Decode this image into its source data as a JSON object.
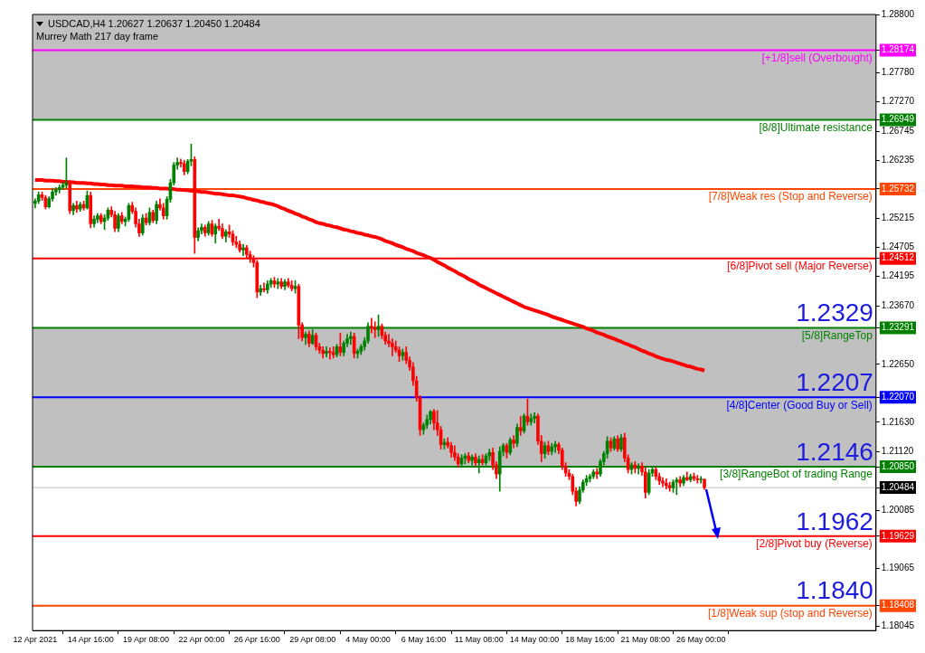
{
  "chart_data": {
    "type": "candlestick",
    "title": "USDCAD,H4 1.20627 1.20637 1.20450 1.20484",
    "subtitle": "Murrey Math 217 day frame",
    "categories": [
      "12 Apr 2021",
      null,
      null,
      null,
      null,
      null,
      null,
      null,
      null,
      null,
      null,
      null,
      null,
      null,
      null,
      null,
      "14 Apr 16:00",
      null,
      null,
      null,
      null,
      null,
      null,
      null,
      null,
      null,
      null,
      null,
      null,
      null,
      null,
      null,
      "19 Apr 08:00",
      null,
      null,
      null,
      null,
      null,
      null,
      null,
      null,
      null,
      null,
      null,
      null,
      null,
      null,
      null,
      "22 Apr 00:00",
      null,
      null,
      null,
      null,
      null,
      null,
      null,
      null,
      null,
      null,
      null,
      null,
      null,
      null,
      null,
      "26 Apr 16:00",
      null,
      null,
      null,
      null,
      null,
      null,
      null,
      null,
      null,
      null,
      null,
      null,
      null,
      null,
      null,
      "29 Apr 08:00",
      null,
      null,
      null,
      null,
      null,
      null,
      null,
      null,
      null,
      null,
      null,
      null,
      null,
      null,
      null,
      "4 May 00:00",
      null,
      null,
      null,
      null,
      null,
      null,
      null,
      null,
      null,
      null,
      null,
      null,
      null,
      null,
      null,
      "6 May 16:00",
      null,
      null,
      null,
      null,
      null,
      null,
      null,
      null,
      null,
      null,
      null,
      null,
      null,
      null,
      null,
      "11 May 08:00",
      null,
      null,
      null,
      null,
      null,
      null,
      null,
      null,
      null,
      null,
      null,
      null,
      null,
      null,
      null,
      "14 May 00:00",
      null,
      null,
      null,
      null,
      null,
      null,
      null,
      null,
      null,
      null,
      null,
      null,
      null,
      null,
      null,
      "18 May 16:00",
      null,
      null,
      null,
      null,
      null,
      null,
      null,
      null,
      null,
      null,
      null,
      null,
      null,
      null,
      null,
      "21 May 08:00",
      null,
      null,
      null,
      null,
      null,
      null,
      null,
      null,
      null,
      null,
      null,
      null,
      null,
      null,
      null,
      "26 May 00:00",
      null
    ],
    "ohlc": [
      [
        1.2548,
        1.2556,
        1.254,
        1.2552
      ],
      [
        1.2552,
        1.2568,
        1.2548,
        1.2563
      ],
      [
        1.2563,
        1.2568,
        1.2553,
        1.2558
      ],
      [
        1.2558,
        1.2562,
        1.2538,
        1.2542
      ],
      [
        1.2542,
        1.256,
        1.254,
        1.2556
      ],
      [
        1.2556,
        1.2574,
        1.2552,
        1.2568
      ],
      [
        1.2568,
        1.2576,
        1.2562,
        1.2572
      ],
      [
        1.2572,
        1.258,
        1.2566,
        1.2576
      ],
      [
        1.2576,
        1.2585,
        1.2572,
        1.258
      ],
      [
        1.258,
        1.2628,
        1.2574,
        1.2584
      ],
      [
        1.2584,
        1.2588,
        1.253,
        1.2535
      ],
      [
        1.2535,
        1.2548,
        1.2528,
        1.2544
      ],
      [
        1.2544,
        1.2552,
        1.2532,
        1.2538
      ],
      [
        1.2538,
        1.255,
        1.2534,
        1.2546
      ],
      [
        1.2546,
        1.2552,
        1.2536,
        1.254
      ],
      [
        1.254,
        1.257,
        1.2538,
        1.2562
      ],
      [
        1.2562,
        1.2568,
        1.2505,
        1.2512
      ],
      [
        1.2512,
        1.2526,
        1.2506,
        1.252
      ],
      [
        1.252,
        1.253,
        1.2514,
        1.2526
      ],
      [
        1.2526,
        1.253,
        1.2512,
        1.2516
      ],
      [
        1.2516,
        1.2528,
        1.2502,
        1.2522
      ],
      [
        1.2522,
        1.254,
        1.2518,
        1.2536
      ],
      [
        1.2536,
        1.2542,
        1.2524,
        1.2528
      ],
      [
        1.2528,
        1.2534,
        1.2498,
        1.2504
      ],
      [
        1.2504,
        1.253,
        1.2498,
        1.2526
      ],
      [
        1.2526,
        1.2532,
        1.2512,
        1.2516
      ],
      [
        1.2516,
        1.2524,
        1.2508,
        1.252
      ],
      [
        1.252,
        1.2548,
        1.2516,
        1.2544
      ],
      [
        1.2544,
        1.255,
        1.253,
        1.2534
      ],
      [
        1.2534,
        1.254,
        1.2506,
        1.2512
      ],
      [
        1.2512,
        1.252,
        1.249,
        1.2496
      ],
      [
        1.2496,
        1.2528,
        1.2492,
        1.2522
      ],
      [
        1.2522,
        1.253,
        1.251,
        1.2514
      ],
      [
        1.2514,
        1.254,
        1.251,
        1.2532
      ],
      [
        1.2532,
        1.2536,
        1.2514,
        1.2518
      ],
      [
        1.2518,
        1.2552,
        1.2512,
        1.2546
      ],
      [
        1.2546,
        1.2556,
        1.2536,
        1.254
      ],
      [
        1.254,
        1.2548,
        1.252,
        1.2526
      ],
      [
        1.2526,
        1.256,
        1.252,
        1.2555
      ],
      [
        1.2555,
        1.259,
        1.255,
        1.2584
      ],
      [
        1.2584,
        1.262,
        1.258,
        1.2615
      ],
      [
        1.2615,
        1.2628,
        1.2608,
        1.262
      ],
      [
        1.262,
        1.2626,
        1.2612,
        1.2618
      ],
      [
        1.2618,
        1.2624,
        1.2598,
        1.2604
      ],
      [
        1.2604,
        1.2625,
        1.26,
        1.2622
      ],
      [
        1.2622,
        1.2652,
        1.2614,
        1.2625
      ],
      [
        1.2625,
        1.263,
        1.246,
        1.2488
      ],
      [
        1.2488,
        1.2505,
        1.2482,
        1.25
      ],
      [
        1.25,
        1.2512,
        1.2494,
        1.2506
      ],
      [
        1.2506,
        1.251,
        1.249,
        1.2496
      ],
      [
        1.2496,
        1.2516,
        1.2492,
        1.2512
      ],
      [
        1.2512,
        1.2518,
        1.249,
        1.2494
      ],
      [
        1.2494,
        1.2512,
        1.2478,
        1.2508
      ],
      [
        1.2508,
        1.252,
        1.25,
        1.2504
      ],
      [
        1.2504,
        1.2512,
        1.2486,
        1.249
      ],
      [
        1.249,
        1.2502,
        1.248,
        1.2498
      ],
      [
        1.2498,
        1.251,
        1.2488,
        1.2494
      ],
      [
        1.2494,
        1.25,
        1.2474,
        1.248
      ],
      [
        1.248,
        1.249,
        1.247,
        1.2476
      ],
      [
        1.2476,
        1.2482,
        1.2462,
        1.2466
      ],
      [
        1.2466,
        1.2476,
        1.2456,
        1.247
      ],
      [
        1.247,
        1.2474,
        1.2452,
        1.2458
      ],
      [
        1.2458,
        1.2464,
        1.2444,
        1.245
      ],
      [
        1.245,
        1.2456,
        1.2436,
        1.2444
      ],
      [
        1.2444,
        1.2448,
        1.2382,
        1.2392
      ],
      [
        1.2392,
        1.2404,
        1.2386,
        1.2398
      ],
      [
        1.2398,
        1.2408,
        1.2392,
        1.2396
      ],
      [
        1.2396,
        1.2412,
        1.239,
        1.2406
      ],
      [
        1.2406,
        1.2416,
        1.24,
        1.2412
      ],
      [
        1.2412,
        1.2418,
        1.24,
        1.2406
      ],
      [
        1.2406,
        1.2416,
        1.2398,
        1.241
      ],
      [
        1.241,
        1.2416,
        1.2398,
        1.2402
      ],
      [
        1.2402,
        1.2414,
        1.2396,
        1.241
      ],
      [
        1.241,
        1.2416,
        1.24,
        1.2404
      ],
      [
        1.2404,
        1.2412,
        1.2394,
        1.2398
      ],
      [
        1.2398,
        1.2412,
        1.239,
        1.2402
      ],
      [
        1.2402,
        1.2406,
        1.231,
        1.2334
      ],
      [
        1.2334,
        1.2338,
        1.2306,
        1.2312
      ],
      [
        1.2312,
        1.2322,
        1.23,
        1.2318
      ],
      [
        1.2318,
        1.2324,
        1.2296,
        1.2302
      ],
      [
        1.2302,
        1.2326,
        1.23,
        1.2316
      ],
      [
        1.2316,
        1.232,
        1.229,
        1.2296
      ],
      [
        1.2296,
        1.2302,
        1.2284,
        1.229
      ],
      [
        1.229,
        1.2296,
        1.2276,
        1.2284
      ],
      [
        1.2284,
        1.2296,
        1.2278,
        1.2288
      ],
      [
        1.2288,
        1.2294,
        1.2274,
        1.2286
      ],
      [
        1.2286,
        1.2296,
        1.2276,
        1.2282
      ],
      [
        1.2282,
        1.23,
        1.2278,
        1.2296
      ],
      [
        1.2296,
        1.232,
        1.228,
        1.2286
      ],
      [
        1.2286,
        1.2306,
        1.228,
        1.2302
      ],
      [
        1.2302,
        1.2318,
        1.2296,
        1.231
      ],
      [
        1.231,
        1.2322,
        1.23,
        1.2314
      ],
      [
        1.2314,
        1.232,
        1.2276,
        1.2284
      ],
      [
        1.2284,
        1.2292,
        1.2276,
        1.2288
      ],
      [
        1.2288,
        1.23,
        1.2282,
        1.2296
      ],
      [
        1.2296,
        1.2312,
        1.229,
        1.2306
      ],
      [
        1.2306,
        1.2338,
        1.2302,
        1.2332
      ],
      [
        1.2332,
        1.2346,
        1.232,
        1.233
      ],
      [
        1.233,
        1.234,
        1.2312,
        1.2326
      ],
      [
        1.2326,
        1.2352,
        1.2314,
        1.2332
      ],
      [
        1.2332,
        1.2336,
        1.231,
        1.2316
      ],
      [
        1.2316,
        1.2322,
        1.23,
        1.2306
      ],
      [
        1.2306,
        1.2318,
        1.2296,
        1.2302
      ],
      [
        1.2302,
        1.231,
        1.228,
        1.2296
      ],
      [
        1.2296,
        1.2306,
        1.2286,
        1.229
      ],
      [
        1.229,
        1.2296,
        1.227,
        1.228
      ],
      [
        1.228,
        1.2292,
        1.2272,
        1.2286
      ],
      [
        1.2286,
        1.2296,
        1.2266,
        1.2272
      ],
      [
        1.2272,
        1.2278,
        1.2254,
        1.226
      ],
      [
        1.226,
        1.2268,
        1.2228,
        1.2236
      ],
      [
        1.2236,
        1.2244,
        1.22,
        1.2206
      ],
      [
        1.2206,
        1.221,
        1.214,
        1.215
      ],
      [
        1.215,
        1.2162,
        1.2142,
        1.2158
      ],
      [
        1.2158,
        1.2176,
        1.2152,
        1.2168
      ],
      [
        1.2168,
        1.2184,
        1.216,
        1.2182
      ],
      [
        1.2182,
        1.2186,
        1.215,
        1.2162
      ],
      [
        1.2162,
        1.2184,
        1.214,
        1.215
      ],
      [
        1.215,
        1.2156,
        1.2116,
        1.2124
      ],
      [
        1.2124,
        1.2134,
        1.2116,
        1.2128
      ],
      [
        1.2128,
        1.2136,
        1.2118,
        1.2122
      ],
      [
        1.2122,
        1.2128,
        1.2102,
        1.211
      ],
      [
        1.211,
        1.2122,
        1.2096,
        1.2102
      ],
      [
        1.2102,
        1.2108,
        1.2084,
        1.209
      ],
      [
        1.209,
        1.2106,
        1.2084,
        1.21
      ],
      [
        1.21,
        1.2108,
        1.209,
        1.2104
      ],
      [
        1.2104,
        1.211,
        1.2092,
        1.2096
      ],
      [
        1.2096,
        1.2106,
        1.2088,
        1.2102
      ],
      [
        1.2102,
        1.2108,
        1.2086,
        1.2092
      ],
      [
        1.2092,
        1.2104,
        1.2074,
        1.2098
      ],
      [
        1.2098,
        1.2106,
        1.2088,
        1.2092
      ],
      [
        1.2092,
        1.2108,
        1.2088,
        1.2104
      ],
      [
        1.2104,
        1.2116,
        1.2096,
        1.211
      ],
      [
        1.211,
        1.2118,
        1.208,
        1.2088
      ],
      [
        1.2088,
        1.2094,
        1.2064,
        1.2072
      ],
      [
        1.2072,
        1.212,
        1.2042,
        1.2112
      ],
      [
        1.2112,
        1.2126,
        1.2104,
        1.2122
      ],
      [
        1.2122,
        1.2126,
        1.21,
        1.211
      ],
      [
        1.211,
        1.2136,
        1.2106,
        1.2132
      ],
      [
        1.2132,
        1.214,
        1.2118,
        1.2126
      ],
      [
        1.2126,
        1.216,
        1.212,
        1.2154
      ],
      [
        1.2154,
        1.2174,
        1.214,
        1.2148
      ],
      [
        1.2148,
        1.2178,
        1.2144,
        1.2174
      ],
      [
        1.2174,
        1.2204,
        1.2158,
        1.2164
      ],
      [
        1.2164,
        1.2178,
        1.2158,
        1.217
      ],
      [
        1.217,
        1.218,
        1.2162,
        1.2174
      ],
      [
        1.2174,
        1.2178,
        1.2124,
        1.213
      ],
      [
        1.213,
        1.214,
        1.2094,
        1.2108
      ],
      [
        1.2108,
        1.2128,
        1.21,
        1.2122
      ],
      [
        1.2122,
        1.213,
        1.2106,
        1.2112
      ],
      [
        1.2112,
        1.2126,
        1.2106,
        1.212
      ],
      [
        1.212,
        1.213,
        1.211,
        1.2124
      ],
      [
        1.2124,
        1.2128,
        1.2108,
        1.2114
      ],
      [
        1.2114,
        1.2118,
        1.208,
        1.2086
      ],
      [
        1.2086,
        1.2092,
        1.2068,
        1.2074
      ],
      [
        1.2074,
        1.208,
        1.2062,
        1.2068
      ],
      [
        1.2068,
        1.2072,
        1.2036,
        1.2042
      ],
      [
        1.2042,
        1.2048,
        1.2016,
        1.2024
      ],
      [
        1.2024,
        1.205,
        1.202,
        1.2044
      ],
      [
        1.2044,
        1.2062,
        1.204,
        1.2058
      ],
      [
        1.2058,
        1.207,
        1.2052,
        1.2064
      ],
      [
        1.2064,
        1.2072,
        1.2058,
        1.2068
      ],
      [
        1.2068,
        1.208,
        1.2064,
        1.2076
      ],
      [
        1.2076,
        1.2082,
        1.2064,
        1.2072
      ],
      [
        1.2072,
        1.2098,
        1.2068,
        1.2094
      ],
      [
        1.2094,
        1.2112,
        1.2088,
        1.2108
      ],
      [
        1.2108,
        1.2138,
        1.21,
        1.213
      ],
      [
        1.213,
        1.2136,
        1.2112,
        1.2118
      ],
      [
        1.2118,
        1.2138,
        1.2114,
        1.2134
      ],
      [
        1.2134,
        1.214,
        1.2112,
        1.2116
      ],
      [
        1.2116,
        1.2142,
        1.2112,
        1.2136
      ],
      [
        1.2136,
        1.2144,
        1.2094,
        1.21
      ],
      [
        1.21,
        1.2106,
        1.2074,
        1.208
      ],
      [
        1.208,
        1.2092,
        1.2072,
        1.2088
      ],
      [
        1.2088,
        1.2094,
        1.2074,
        1.2082
      ],
      [
        1.2082,
        1.209,
        1.2072,
        1.2086
      ],
      [
        1.2086,
        1.2092,
        1.207,
        1.2076
      ],
      [
        1.2076,
        1.2084,
        1.203,
        1.204
      ],
      [
        1.204,
        1.208,
        1.2036,
        1.2074
      ],
      [
        1.2074,
        1.2086,
        1.2068,
        1.208
      ],
      [
        1.208,
        1.2084,
        1.2062,
        1.2068
      ],
      [
        1.2068,
        1.2074,
        1.2054,
        1.206
      ],
      [
        1.206,
        1.2066,
        1.205,
        1.2056
      ],
      [
        1.2056,
        1.2064,
        1.2046,
        1.2052
      ],
      [
        1.2052,
        1.2058,
        1.2042,
        1.2048
      ],
      [
        1.2048,
        1.2062,
        1.204,
        1.2058
      ],
      [
        1.2058,
        1.2066,
        1.2036,
        1.2062
      ],
      [
        1.2062,
        1.2068,
        1.205,
        1.2056
      ],
      [
        1.2056,
        1.207,
        1.2052,
        1.2066
      ],
      [
        1.2066,
        1.2076,
        1.206,
        1.2062
      ],
      [
        1.2062,
        1.2072,
        1.2058,
        1.2068
      ],
      [
        1.2068,
        1.2074,
        1.206,
        1.2064
      ],
      [
        1.2064,
        1.207,
        1.2056,
        1.2062
      ],
      [
        1.2062,
        1.2068,
        1.2056,
        1.2063
      ],
      [
        1.20627,
        1.20637,
        1.2045,
        1.20484
      ]
    ],
    "colors": [
      "#008000",
      "#008000",
      "#ff0000",
      "#ff0000",
      "#008000",
      "#008000",
      "#008000",
      "#008000",
      "#008000",
      "#008000",
      "#ff0000",
      "#008000",
      "#ff0000",
      "#008000",
      "#ff0000",
      "#008000",
      "#ff0000",
      "#008000",
      "#008000",
      "#ff0000",
      "#008000",
      "#008000",
      "#ff0000",
      "#ff0000",
      "#008000",
      "#ff0000",
      "#008000",
      "#008000",
      "#ff0000",
      "#ff0000",
      "#ff0000",
      "#008000",
      "#ff0000",
      "#008000",
      "#ff0000",
      "#008000",
      "#ff0000",
      "#ff0000",
      "#008000",
      "#008000",
      "#008000",
      "#008000",
      "#ff0000",
      "#ff0000",
      "#008000",
      "#008000",
      "#ff0000",
      "#008000",
      "#008000",
      "#ff0000",
      "#008000",
      "#ff0000",
      "#008000",
      "#ff0000",
      "#ff0000",
      "#008000",
      "#ff0000",
      "#ff0000",
      "#ff0000",
      "#ff0000",
      "#008000",
      "#ff0000",
      "#ff0000",
      "#ff0000",
      "#ff0000",
      "#008000",
      "#ff0000",
      "#008000",
      "#008000",
      "#ff0000",
      "#008000",
      "#ff0000",
      "#008000",
      "#ff0000",
      "#ff0000",
      "#008000",
      "#ff0000",
      "#ff0000",
      "#008000",
      "#ff0000",
      "#008000",
      "#ff0000",
      "#ff0000",
      "#ff0000",
      "#008000",
      "#ff0000",
      "#ff0000",
      "#008000",
      "#ff0000",
      "#008000",
      "#008000",
      "#008000",
      "#ff0000",
      "#008000",
      "#008000",
      "#008000",
      "#008000",
      "#ff0000",
      "#ff0000",
      "#008000",
      "#ff0000",
      "#ff0000",
      "#ff0000",
      "#ff0000",
      "#ff0000",
      "#ff0000",
      "#008000",
      "#ff0000",
      "#ff0000",
      "#ff0000",
      "#ff0000",
      "#ff0000",
      "#008000",
      "#008000",
      "#008000",
      "#ff0000",
      "#ff0000",
      "#ff0000",
      "#008000",
      "#ff0000",
      "#ff0000",
      "#ff0000",
      "#ff0000",
      "#008000",
      "#008000",
      "#ff0000",
      "#008000",
      "#ff0000",
      "#008000",
      "#ff0000",
      "#008000",
      "#008000",
      "#ff0000",
      "#ff0000",
      "#008000",
      "#008000",
      "#ff0000",
      "#008000",
      "#ff0000",
      "#008000",
      "#ff0000",
      "#008000",
      "#ff0000",
      "#008000",
      "#008000",
      "#ff0000",
      "#ff0000",
      "#008000",
      "#ff0000",
      "#008000",
      "#008000",
      "#ff0000",
      "#ff0000",
      "#ff0000",
      "#ff0000",
      "#ff0000",
      "#ff0000",
      "#008000",
      "#008000",
      "#008000",
      "#008000",
      "#008000",
      "#ff0000",
      "#008000",
      "#008000",
      "#008000",
      "#ff0000",
      "#008000",
      "#ff0000",
      "#008000",
      "#ff0000",
      "#ff0000",
      "#008000",
      "#ff0000",
      "#008000",
      "#ff0000",
      "#ff0000",
      "#008000",
      "#008000",
      "#ff0000",
      "#ff0000",
      "#ff0000",
      "#ff0000",
      "#ff0000",
      "#008000",
      "#008000",
      "#ff0000",
      "#008000",
      "#ff0000",
      "#008000",
      "#ff0000",
      "#ff0000",
      "#008000",
      "#ff0000"
    ],
    "series": [
      {
        "type": "line",
        "color": "#ff0000",
        "values": [
          1.2589,
          1.2589,
          1.2589,
          1.2588,
          1.2588,
          1.2588,
          1.2587,
          1.2587,
          1.2586,
          1.2586,
          1.2585,
          1.2585,
          1.2584,
          1.2584,
          1.2584,
          1.2583,
          1.2583,
          1.2582,
          1.2582,
          1.2581,
          1.2581,
          1.258,
          1.258,
          1.2579,
          1.2579,
          1.2579,
          1.2578,
          1.2578,
          1.2578,
          1.2577,
          1.2577,
          1.2576,
          1.2576,
          1.2576,
          1.2575,
          1.2575,
          1.2574,
          1.2574,
          1.2574,
          1.2573,
          1.2573,
          1.2572,
          1.2572,
          1.2571,
          1.2571,
          1.257,
          1.257,
          1.2569,
          1.2568,
          1.2568,
          1.2567,
          1.2566,
          1.2565,
          1.2565,
          1.2564,
          1.2563,
          1.2562,
          1.2562,
          1.2561,
          1.256,
          1.2559,
          1.2557,
          1.2556,
          1.2554,
          1.2553,
          1.2551,
          1.255,
          1.2548,
          1.2547,
          1.2545,
          1.2543,
          1.254,
          1.2538,
          1.2535,
          1.2533,
          1.253,
          1.2528,
          1.2525,
          1.2523,
          1.252,
          1.2518,
          1.2515,
          1.2513,
          1.2512,
          1.251,
          1.2509,
          1.2507,
          1.2506,
          1.2504,
          1.2502,
          1.2501,
          1.2499,
          1.2498,
          1.2496,
          1.2495,
          1.2493,
          1.2492,
          1.249,
          1.2489,
          1.2487,
          1.2485,
          1.2482,
          1.248,
          1.2478,
          1.2475,
          1.2473,
          1.2471,
          1.2468,
          1.2466,
          1.2464,
          1.2461,
          1.2459,
          1.2457,
          1.2454,
          1.2452,
          1.2449,
          1.2445,
          1.2442,
          1.2439,
          1.2435,
          1.2432,
          1.2429,
          1.2425,
          1.2422,
          1.2419,
          1.2415,
          1.2412,
          1.2409,
          1.2405,
          1.2402,
          1.2399,
          1.2396,
          1.2393,
          1.239,
          1.2387,
          1.2384,
          1.2381,
          1.2378,
          1.2375,
          1.2372,
          1.2369,
          1.2366,
          1.2364,
          1.2362,
          1.236,
          1.2358,
          1.2356,
          1.2354,
          1.2352,
          1.2349,
          1.2347,
          1.2345,
          1.2343,
          1.2341,
          1.2339,
          1.2337,
          1.2335,
          1.2333,
          1.2331,
          1.2328,
          1.2326,
          1.2324,
          1.2321,
          1.2319,
          1.2317,
          1.2314,
          1.2312,
          1.231,
          1.2307,
          1.2305,
          1.2302,
          1.23,
          1.2297,
          1.2295,
          1.2292,
          1.2289,
          1.2287,
          1.2284,
          1.2282,
          1.2279,
          1.2277,
          1.2275,
          1.2273,
          1.2272,
          1.227,
          1.2268,
          1.2266,
          1.2264,
          1.2262,
          1.2261,
          1.2259,
          1.2257,
          1.2256,
          1.2254
        ]
      }
    ],
    "ylim": [
      1.1797,
      1.288
    ],
    "yticks": [
      {
        "value": 1.288,
        "label": "1.28800"
      },
      {
        "value": 1.28174,
        "label": "1.28174"
      },
      {
        "value": 1.2778,
        "label": "1.27780"
      },
      {
        "value": 1.2727,
        "label": "1.27270"
      },
      {
        "value": 1.26949,
        "label": "1.26949"
      },
      {
        "value": 1.26745,
        "label": "1.26745"
      },
      {
        "value": 1.26235,
        "label": "1.26235"
      },
      {
        "value": 1.25732,
        "label": "1.25732"
      },
      {
        "value": 1.25215,
        "label": "1.25215"
      },
      {
        "value": 1.24705,
        "label": "1.24705"
      },
      {
        "value": 1.24512,
        "label": "1.24512"
      },
      {
        "value": 1.24195,
        "label": "1.24195"
      },
      {
        "value": 1.2367,
        "label": "1.23670"
      },
      {
        "value": 1.23291,
        "label": "1.23291"
      },
      {
        "value": 1.2265,
        "label": "1.22650"
      },
      {
        "value": 1.2207,
        "label": "1.22070"
      },
      {
        "value": 1.2163,
        "label": "1.21630"
      },
      {
        "value": 1.2112,
        "label": "1.21120"
      },
      {
        "value": 1.2085,
        "label": "1.20850"
      },
      {
        "value": 1.20484,
        "label": "1.20484"
      },
      {
        "value": 1.20085,
        "label": "1.20085"
      },
      {
        "value": 1.19629,
        "label": "1.19629"
      },
      {
        "value": 1.19065,
        "label": "1.19065"
      },
      {
        "value": 1.18408,
        "label": "1.18408"
      },
      {
        "value": 1.18045,
        "label": "1.18045"
      }
    ],
    "bands": [
      {
        "axis": "y",
        "from": 1.26949,
        "to": 1.288,
        "color": "#c0c0c0"
      },
      {
        "axis": "y",
        "from": 1.2085,
        "to": 1.23291,
        "color": "#c0c0c0"
      }
    ],
    "ref_lines": [
      {
        "axis": "y",
        "value": 1.28174,
        "label": "[+1/8]sell (Overbought)",
        "color": "#ff00ff"
      },
      {
        "axis": "y",
        "value": 1.26949,
        "label": "[8/8]Ultimate resistance",
        "color": "#008000"
      },
      {
        "axis": "y",
        "value": 1.25732,
        "label": "[7/8]Weak res (Stop and Reverse)",
        "color": "#ff4500"
      },
      {
        "axis": "y",
        "value": 1.24512,
        "label": "[6/8]Pivot sell (Major Reverse)",
        "color": "#ff0000"
      },
      {
        "axis": "y",
        "value": 1.23291,
        "label": "[5/8]RangeTop",
        "color": "#008000"
      },
      {
        "axis": "y",
        "value": 1.2207,
        "label": "[4/8]Center (Good Buy or Sell)",
        "color": "#0000ff"
      },
      {
        "axis": "y",
        "value": 1.2085,
        "label": "[3/8]RangeBot of trading Range",
        "color": "#008000"
      },
      {
        "axis": "y",
        "value": 1.20484,
        "color": "#c0c0c0"
      },
      {
        "axis": "y",
        "value": 1.19629,
        "label": "[2/8]Pivot buy (Reverse)",
        "color": "#ff0000"
      },
      {
        "axis": "y",
        "value": 1.18408,
        "label": "[1/8]Weak sup (stop and Reverse)",
        "color": "#ff4500"
      }
    ],
    "annotations": [
      {
        "text": "1.2329",
        "y": 1.23291
      },
      {
        "text": "1.2207",
        "y": 1.2207
      },
      {
        "text": "1.2146",
        "y": 1.2085
      },
      {
        "text": "1.1962",
        "y": 1.19629
      },
      {
        "text": "1.1840",
        "y": 1.18408
      }
    ],
    "grid": false,
    "legend": false
  }
}
